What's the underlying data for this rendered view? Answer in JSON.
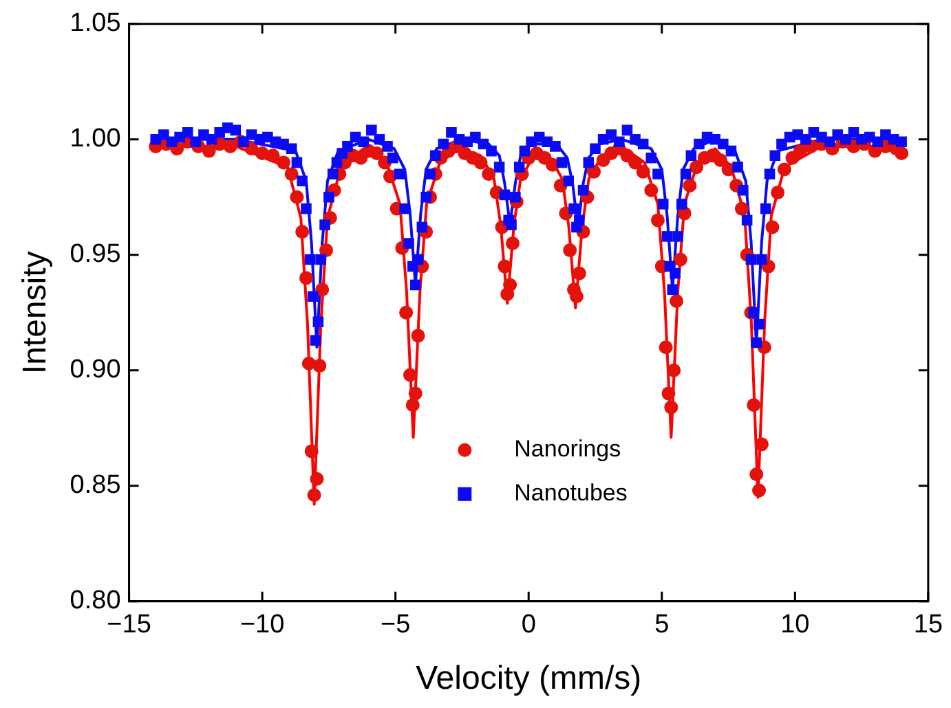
{
  "chart_data": {
    "type": "scatter",
    "xlabel": "Velocity (mm/s)",
    "ylabel": "Intensity",
    "xlim": [
      -15,
      15
    ],
    "xticks": [
      {
        "value": -15,
        "label": "−15"
      },
      {
        "value": -10,
        "label": "−10"
      },
      {
        "value": -5,
        "label": "−5"
      },
      0,
      5,
      10,
      15
    ],
    "ylim": [
      0.8,
      1.05
    ],
    "yticks": [
      {
        "value": 0.8,
        "label": "0.80"
      },
      {
        "value": 0.85,
        "label": "0.85"
      },
      {
        "value": 0.9,
        "label": "0.90"
      },
      {
        "value": 0.95,
        "label": "0.95"
      },
      {
        "value": 1.0,
        "label": "1.00"
      },
      {
        "value": 1.05,
        "label": "1.05"
      }
    ],
    "grid": false,
    "legend": "bottom",
    "series": [
      {
        "name": "Nanorings",
        "color": "#e3120b",
        "marker": "circle",
        "x": [
          -14,
          -13.6,
          -13.2,
          -12.8,
          -12.4,
          -12.0,
          -11.6,
          -11.2,
          -10.8,
          -10.4,
          -10.0,
          -9.6,
          -9.2,
          -8.9,
          -8.7,
          -8.5,
          -8.35,
          -8.25,
          -8.15,
          -8.05,
          -7.95,
          -7.85,
          -7.75,
          -7.6,
          -7.45,
          -7.3,
          -7.1,
          -6.9,
          -6.6,
          -6.3,
          -6.0,
          -5.7,
          -5.4,
          -5.2,
          -4.95,
          -4.75,
          -4.6,
          -4.45,
          -4.35,
          -4.25,
          -4.15,
          -4.0,
          -3.85,
          -3.7,
          -3.5,
          -3.3,
          -3.0,
          -2.7,
          -2.4,
          -2.1,
          -1.8,
          -1.5,
          -1.2,
          -1.0,
          -0.9,
          -0.8,
          -0.7,
          -0.6,
          -0.45,
          -0.25,
          0,
          0.3,
          0.6,
          0.9,
          1.2,
          1.4,
          1.55,
          1.7,
          1.8,
          1.9,
          2.05,
          2.2,
          2.45,
          2.8,
          3.1,
          3.4,
          3.7,
          4.0,
          4.3,
          4.6,
          4.85,
          5.0,
          5.15,
          5.25,
          5.35,
          5.45,
          5.55,
          5.7,
          5.85,
          6.05,
          6.3,
          6.6,
          6.9,
          7.2,
          7.5,
          7.8,
          8.0,
          8.2,
          8.35,
          8.45,
          8.55,
          8.65,
          8.75,
          8.85,
          9.0,
          9.15,
          9.35,
          9.6,
          9.9,
          10.2,
          10.6,
          11.0,
          11.4,
          11.8,
          12.2,
          12.6,
          13.0,
          13.4,
          13.8,
          14.0
        ],
        "values": [
          0.997,
          0.998,
          0.996,
          0.999,
          0.997,
          0.995,
          0.998,
          0.997,
          0.999,
          0.996,
          0.994,
          0.993,
          0.99,
          0.985,
          0.975,
          0.96,
          0.94,
          0.903,
          0.865,
          0.846,
          0.853,
          0.902,
          0.935,
          0.952,
          0.966,
          0.978,
          0.985,
          0.99,
          0.993,
          0.992,
          0.995,
          0.994,
          0.99,
          0.984,
          0.97,
          0.953,
          0.925,
          0.898,
          0.885,
          0.89,
          0.915,
          0.945,
          0.96,
          0.975,
          0.985,
          0.992,
          0.995,
          0.997,
          0.994,
          0.992,
          0.99,
          0.985,
          0.977,
          0.962,
          0.945,
          0.933,
          0.937,
          0.955,
          0.973,
          0.985,
          0.992,
          0.994,
          0.992,
          0.989,
          0.98,
          0.968,
          0.952,
          0.935,
          0.932,
          0.942,
          0.96,
          0.975,
          0.986,
          0.991,
          0.994,
          0.996,
          0.993,
          0.99,
          0.986,
          0.978,
          0.965,
          0.945,
          0.91,
          0.89,
          0.884,
          0.9,
          0.93,
          0.948,
          0.968,
          0.98,
          0.988,
          0.992,
          0.993,
          0.991,
          0.987,
          0.98,
          0.97,
          0.95,
          0.925,
          0.885,
          0.855,
          0.848,
          0.868,
          0.91,
          0.945,
          0.962,
          0.977,
          0.987,
          0.992,
          0.995,
          0.997,
          0.998,
          0.996,
          0.999,
          0.997,
          0.998,
          0.995,
          0.997,
          0.996,
          0.994
        ]
      },
      {
        "name": "Nanotubes",
        "color": "#0a0af5",
        "marker": "square",
        "x": [
          -14,
          -13.7,
          -13.4,
          -13.1,
          -12.8,
          -12.5,
          -12.2,
          -11.9,
          -11.6,
          -11.3,
          -11.0,
          -10.7,
          -10.4,
          -10.1,
          -9.8,
          -9.5,
          -9.2,
          -8.9,
          -8.7,
          -8.5,
          -8.35,
          -8.2,
          -8.1,
          -8.0,
          -7.9,
          -7.8,
          -7.65,
          -7.5,
          -7.35,
          -7.2,
          -7.0,
          -6.8,
          -6.5,
          -6.2,
          -5.9,
          -5.6,
          -5.3,
          -5.1,
          -4.85,
          -4.65,
          -4.5,
          -4.35,
          -4.25,
          -4.15,
          -4.0,
          -3.85,
          -3.7,
          -3.5,
          -3.2,
          -2.9,
          -2.6,
          -2.3,
          -2.0,
          -1.7,
          -1.4,
          -1.1,
          -0.9,
          -0.75,
          -0.65,
          -0.5,
          -0.35,
          -0.15,
          0.1,
          0.4,
          0.7,
          1.0,
          1.25,
          1.5,
          1.7,
          1.8,
          1.9,
          2.05,
          2.25,
          2.5,
          2.8,
          3.1,
          3.4,
          3.7,
          4.0,
          4.3,
          4.6,
          4.85,
          5.05,
          5.2,
          5.3,
          5.4,
          5.5,
          5.6,
          5.75,
          5.9,
          6.1,
          6.4,
          6.7,
          7.0,
          7.3,
          7.6,
          7.85,
          8.05,
          8.2,
          8.35,
          8.45,
          8.55,
          8.65,
          8.75,
          8.9,
          9.05,
          9.25,
          9.5,
          9.8,
          10.1,
          10.4,
          10.7,
          11.0,
          11.3,
          11.6,
          11.9,
          12.2,
          12.5,
          12.8,
          13.1,
          13.4,
          13.7,
          14.0
        ],
        "values": [
          1.0,
          1.002,
          0.999,
          1.001,
          1.003,
          0.999,
          1.002,
          1.0,
          1.003,
          1.005,
          1.004,
          0.999,
          1.002,
          1.0,
          1.001,
          0.999,
          0.998,
          0.996,
          0.99,
          0.982,
          0.97,
          0.948,
          0.932,
          0.913,
          0.921,
          0.948,
          0.963,
          0.975,
          0.985,
          0.99,
          0.994,
          0.997,
          1.001,
          0.999,
          1.004,
          1.0,
          0.997,
          0.992,
          0.985,
          0.97,
          0.955,
          0.945,
          0.937,
          0.948,
          0.962,
          0.975,
          0.985,
          0.993,
          0.998,
          1.003,
          1.0,
          0.999,
          1.001,
          0.998,
          0.995,
          0.988,
          0.976,
          0.965,
          0.963,
          0.975,
          0.988,
          0.995,
          0.999,
          1.001,
          0.999,
          0.997,
          0.99,
          0.982,
          0.97,
          0.962,
          0.965,
          0.978,
          0.99,
          0.996,
          1.0,
          1.002,
          0.999,
          1.004,
          1.0,
          0.998,
          0.992,
          0.985,
          0.972,
          0.958,
          0.945,
          0.935,
          0.942,
          0.958,
          0.972,
          0.985,
          0.993,
          0.998,
          1.001,
          1.0,
          0.998,
          0.995,
          0.988,
          0.978,
          0.965,
          0.948,
          0.925,
          0.912,
          0.92,
          0.948,
          0.97,
          0.985,
          0.993,
          0.998,
          1.001,
          1.002,
          1.0,
          1.003,
          1.001,
          0.999,
          1.002,
          1.0,
          1.003,
          1.0,
          1.001,
          0.999,
          1.002,
          1.0,
          0.999
        ]
      },
      {
        "type": "line",
        "color": "#ff0000",
        "marker": "none",
        "x": [
          -14,
          -11,
          -9.05,
          -8.55,
          -8.3,
          -8.05,
          -7.8,
          -7.55,
          -7.05,
          -6.2,
          -5.33,
          -4.83,
          -4.58,
          -4.33,
          -4.08,
          -3.83,
          -3.33,
          -2.6,
          -1.8,
          -1.3,
          -1.05,
          -0.8,
          -0.55,
          -0.3,
          0.2,
          0.76,
          1.26,
          1.51,
          1.76,
          2.01,
          2.26,
          2.76,
          3.6,
          4.35,
          4.85,
          5.1,
          5.35,
          5.6,
          5.85,
          6.35,
          7.0,
          7.61,
          8.11,
          8.36,
          8.61,
          8.86,
          9.11,
          9.61,
          11,
          14
        ],
        "values": [
          0.997,
          0.997,
          0.988,
          0.966,
          0.92,
          0.842,
          0.92,
          0.966,
          0.988,
          0.996,
          0.99,
          0.972,
          0.934,
          0.871,
          0.934,
          0.972,
          0.99,
          0.996,
          0.993,
          0.983,
          0.963,
          0.929,
          0.963,
          0.983,
          0.993,
          0.993,
          0.983,
          0.962,
          0.927,
          0.962,
          0.983,
          0.993,
          0.996,
          0.99,
          0.972,
          0.934,
          0.871,
          0.934,
          0.972,
          0.99,
          0.996,
          0.988,
          0.967,
          0.921,
          0.845,
          0.921,
          0.967,
          0.988,
          0.997,
          0.997
        ]
      },
      {
        "type": "line",
        "color": "#0a0af5",
        "marker": "none",
        "x": [
          -14,
          -11,
          -8.75,
          -8.35,
          -8.15,
          -7.95,
          -7.75,
          -7.55,
          -7.15,
          -6,
          -5.05,
          -4.65,
          -4.45,
          -4.25,
          -4.05,
          -3.85,
          -3.45,
          -2.5,
          -1.5,
          -1.1,
          -0.9,
          -0.7,
          -0.5,
          -0.3,
          0.1,
          1.05,
          1.45,
          1.65,
          1.85,
          2.05,
          2.25,
          2.65,
          3.5,
          4.6,
          5.0,
          5.2,
          5.4,
          5.6,
          5.8,
          6.2,
          7,
          7.75,
          8.15,
          8.35,
          8.55,
          8.75,
          8.95,
          9.35,
          11,
          14
        ],
        "values": [
          1.0,
          1.0,
          0.995,
          0.982,
          0.955,
          0.91,
          0.955,
          0.982,
          0.995,
          1.0,
          0.996,
          0.987,
          0.968,
          0.937,
          0.968,
          0.987,
          0.996,
          1.0,
          0.998,
          0.993,
          0.981,
          0.963,
          0.981,
          0.993,
          0.998,
          0.998,
          0.992,
          0.981,
          0.962,
          0.981,
          0.992,
          0.998,
          1.0,
          0.996,
          0.987,
          0.967,
          0.935,
          0.967,
          0.987,
          0.996,
          1.0,
          0.995,
          0.982,
          0.956,
          0.911,
          0.956,
          0.982,
          0.995,
          1.0,
          1.0
        ]
      }
    ]
  }
}
